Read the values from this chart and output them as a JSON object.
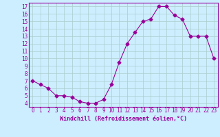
{
  "x": [
    0,
    1,
    2,
    3,
    4,
    5,
    6,
    7,
    8,
    9,
    10,
    11,
    12,
    13,
    14,
    15,
    16,
    17,
    18,
    19,
    20,
    21,
    22,
    23
  ],
  "y": [
    7.0,
    6.5,
    6.0,
    5.0,
    5.0,
    4.8,
    4.2,
    4.0,
    4.0,
    4.5,
    6.5,
    9.5,
    12.0,
    13.5,
    15.0,
    15.3,
    17.0,
    17.0,
    15.8,
    15.3,
    13.0,
    13.0,
    13.0,
    10.0
  ],
  "line_color": "#990099",
  "marker": "D",
  "marker_size": 2.5,
  "bg_color": "#cceeff",
  "grid_color": "#aacccc",
  "ylabel_ticks": [
    4,
    5,
    6,
    7,
    8,
    9,
    10,
    11,
    12,
    13,
    14,
    15,
    16,
    17
  ],
  "xlabel": "Windchill (Refroidissement éolien,°C)",
  "ylim": [
    3.5,
    17.5
  ],
  "xlim": [
    -0.5,
    23.5
  ],
  "tick_color": "#990099",
  "label_color": "#990099",
  "font_family": "monospace",
  "tick_fontsize": 5.5,
  "xlabel_fontsize": 6.0
}
